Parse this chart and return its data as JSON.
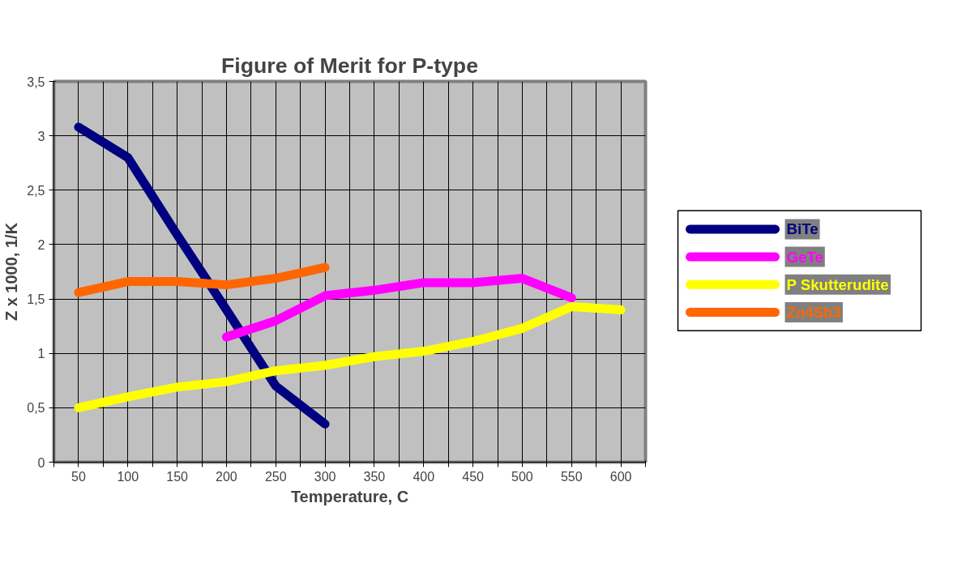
{
  "chart_data": {
    "type": "line",
    "title": "Figure of Merit for P-type",
    "xlabel": "Temperature, C",
    "ylabel": "Z x 1000, 1/K",
    "xlim": [
      25,
      625
    ],
    "xticks": [
      {
        "value": 25,
        "label": null
      },
      50,
      {
        "value": 75,
        "label": null
      },
      100,
      {
        "value": 125,
        "label": null
      },
      150,
      {
        "value": 175,
        "label": null
      },
      200,
      {
        "value": 225,
        "label": null
      },
      250,
      {
        "value": 275,
        "label": null
      },
      300,
      {
        "value": 325,
        "label": null
      },
      350,
      {
        "value": 375,
        "label": null
      },
      400,
      {
        "value": 425,
        "label": null
      },
      450,
      {
        "value": 475,
        "label": null
      },
      500,
      {
        "value": 525,
        "label": null
      },
      550,
      {
        "value": 575,
        "label": null
      },
      600,
      {
        "value": 625,
        "label": null
      }
    ],
    "ylim": [
      0,
      3.5
    ],
    "yticks": [
      0,
      {
        "value": 0.5,
        "label": "0,5"
      },
      1,
      {
        "value": 1.5,
        "label": "1,5"
      },
      2,
      {
        "value": 2.5,
        "label": "2,5"
      },
      3,
      {
        "value": 3.5,
        "label": "3,5"
      }
    ],
    "grid": true,
    "legend": "right",
    "marker": "none",
    "line_style": "solid",
    "series": [
      {
        "name": "BiTe",
        "color": "#000080",
        "x": [
          50,
          100,
          150,
          200,
          250,
          300
        ],
        "values": [
          3.08,
          2.8,
          2.09,
          1.4,
          0.7,
          0.35
        ]
      },
      {
        "name": "GeTe",
        "color": "#ff00ff",
        "x": [
          200,
          250,
          300,
          350,
          400,
          450,
          500,
          550
        ],
        "values": [
          1.15,
          1.3,
          1.53,
          1.58,
          1.65,
          1.65,
          1.69,
          1.51
        ]
      },
      {
        "name": "P Skutterudite",
        "color": "#ffff00",
        "x": [
          50,
          100,
          150,
          200,
          250,
          300,
          350,
          400,
          450,
          500,
          550,
          600
        ],
        "values": [
          0.5,
          0.6,
          0.69,
          0.74,
          0.84,
          0.89,
          0.97,
          1.02,
          1.11,
          1.23,
          1.43,
          1.4
        ]
      },
      {
        "name": "Zn4Sb3",
        "color": "#ff6600",
        "x": [
          50,
          100,
          150,
          200,
          250,
          300
        ],
        "values": [
          1.56,
          1.66,
          1.66,
          1.63,
          1.69,
          1.79
        ]
      }
    ]
  }
}
